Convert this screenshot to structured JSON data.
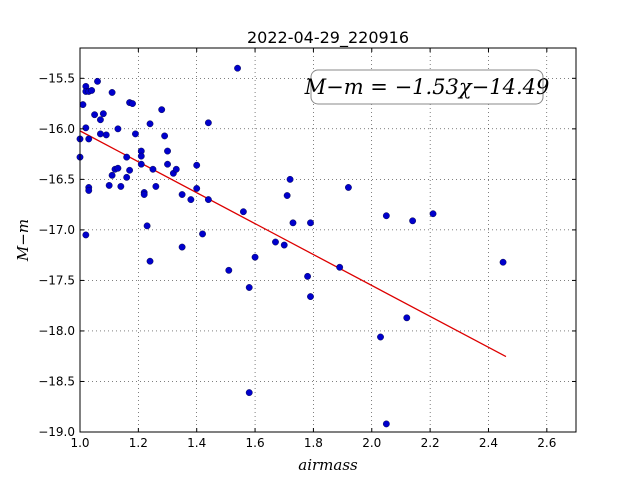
{
  "chart_data": {
    "type": "scatter",
    "title": "2022-04-29_220916",
    "xlabel": "airmass",
    "ylabel": "M−m",
    "xlim": [
      1.0,
      2.7
    ],
    "ylim": [
      -19.0,
      -15.2
    ],
    "y_inverted": true,
    "grid": true,
    "x_ticks": [
      1.0,
      1.2,
      1.4,
      1.6,
      1.8,
      2.0,
      2.2,
      2.4,
      2.6
    ],
    "x_tick_labels": [
      "1.0",
      "1.2",
      "1.4",
      "1.6",
      "1.8",
      "2.0",
      "2.2",
      "2.4",
      "2.6"
    ],
    "y_ticks": [
      -15.5,
      -16.0,
      -16.5,
      -17.0,
      -17.5,
      -18.0,
      -18.5,
      -19.0
    ],
    "y_tick_labels": [
      "−15.5",
      "−16.0",
      "−16.5",
      "−17.0",
      "−17.5",
      "−18.0",
      "−18.5",
      "−19.0"
    ],
    "annotation": "M−m = −1.53χ−14.49",
    "point_color": "#0000cc",
    "fit_color": "#dd0000",
    "fit_line": {
      "slope": -1.53,
      "intercept": -14.49,
      "x_start": 1.0,
      "x_end": 2.46
    },
    "points": [
      [
        1.0,
        -16.1
      ],
      [
        1.0,
        -16.28
      ],
      [
        1.01,
        -15.76
      ],
      [
        1.02,
        -15.58
      ],
      [
        1.02,
        -15.63
      ],
      [
        1.03,
        -15.63
      ],
      [
        1.04,
        -15.62
      ],
      [
        1.02,
        -15.99
      ],
      [
        1.03,
        -16.1
      ],
      [
        1.05,
        -15.86
      ],
      [
        1.06,
        -15.53
      ],
      [
        1.07,
        -15.91
      ],
      [
        1.08,
        -15.85
      ],
      [
        1.07,
        -16.05
      ],
      [
        1.09,
        -16.06
      ],
      [
        1.03,
        -16.58
      ],
      [
        1.03,
        -16.61
      ],
      [
        1.02,
        -17.05
      ],
      [
        1.1,
        -16.56
      ],
      [
        1.11,
        -15.64
      ],
      [
        1.11,
        -16.46
      ],
      [
        1.12,
        -16.4
      ],
      [
        1.13,
        -16.39
      ],
      [
        1.13,
        -16.0
      ],
      [
        1.14,
        -16.57
      ],
      [
        1.16,
        -16.28
      ],
      [
        1.16,
        -16.48
      ],
      [
        1.17,
        -16.41
      ],
      [
        1.17,
        -15.74
      ],
      [
        1.18,
        -15.75
      ],
      [
        1.19,
        -16.05
      ],
      [
        1.21,
        -16.22
      ],
      [
        1.21,
        -16.27
      ],
      [
        1.21,
        -16.35
      ],
      [
        1.22,
        -16.63
      ],
      [
        1.22,
        -16.65
      ],
      [
        1.23,
        -16.96
      ],
      [
        1.24,
        -15.95
      ],
      [
        1.25,
        -16.4
      ],
      [
        1.26,
        -16.57
      ],
      [
        1.24,
        -17.31
      ],
      [
        1.28,
        -15.81
      ],
      [
        1.29,
        -16.07
      ],
      [
        1.3,
        -16.22
      ],
      [
        1.3,
        -16.35
      ],
      [
        1.32,
        -16.44
      ],
      [
        1.33,
        -16.4
      ],
      [
        1.35,
        -16.65
      ],
      [
        1.38,
        -16.7
      ],
      [
        1.35,
        -17.17
      ],
      [
        1.4,
        -16.36
      ],
      [
        1.4,
        -16.59
      ],
      [
        1.42,
        -17.04
      ],
      [
        1.44,
        -15.94
      ],
      [
        1.44,
        -16.7
      ],
      [
        1.51,
        -17.4
      ],
      [
        1.54,
        -15.4
      ],
      [
        1.56,
        -16.82
      ],
      [
        1.58,
        -17.57
      ],
      [
        1.58,
        -18.61
      ],
      [
        1.6,
        -17.27
      ],
      [
        1.67,
        -17.12
      ],
      [
        1.7,
        -17.15
      ],
      [
        1.71,
        -16.66
      ],
      [
        1.72,
        -16.5
      ],
      [
        1.73,
        -16.93
      ],
      [
        1.78,
        -17.46
      ],
      [
        1.79,
        -17.66
      ],
      [
        1.79,
        -16.93
      ],
      [
        1.89,
        -17.37
      ],
      [
        1.92,
        -16.58
      ],
      [
        2.03,
        -18.06
      ],
      [
        2.05,
        -16.86
      ],
      [
        2.05,
        -18.92
      ],
      [
        2.12,
        -17.87
      ],
      [
        2.14,
        -16.91
      ],
      [
        2.21,
        -16.84
      ],
      [
        2.45,
        -17.32
      ]
    ]
  }
}
